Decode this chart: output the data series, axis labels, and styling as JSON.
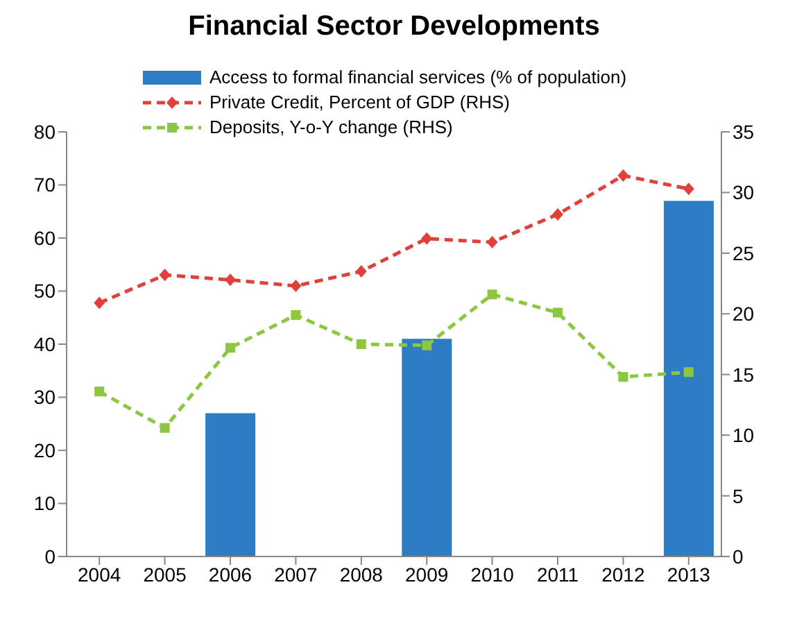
{
  "chart_data": {
    "type": "bar",
    "title": "Financial Sector Developments",
    "categories": [
      "2004",
      "2005",
      "2006",
      "2007",
      "2008",
      "2009",
      "2010",
      "2011",
      "2012",
      "2013"
    ],
    "series": [
      {
        "name": "Access to formal financial services (% of population)",
        "color": "#2e7dc4",
        "values": [
          null,
          null,
          27,
          null,
          null,
          41,
          null,
          null,
          null,
          67
        ]
      },
      {
        "name": "Private Credit, Percent of GDP (RHS)",
        "type": "line",
        "axis": "y2",
        "color": "#e0403a",
        "marker": "diamond",
        "line_style": "dashed",
        "values": [
          20.9,
          23.2,
          22.8,
          22.3,
          23.5,
          26.2,
          25.9,
          28.2,
          31.4,
          30.3
        ]
      },
      {
        "name": "Deposits, Y-o-Y change (RHS)",
        "type": "line",
        "axis": "y2",
        "color": "#8dc63f",
        "marker": "square",
        "line_style": "dashed",
        "values": [
          13.6,
          10.6,
          17.2,
          19.9,
          17.5,
          17.4,
          21.6,
          20.1,
          14.8,
          15.2
        ]
      }
    ],
    "ylim": [
      0,
      80
    ],
    "yticks": [
      0,
      10,
      20,
      30,
      40,
      50,
      60,
      70,
      80
    ],
    "y2lim": [
      0,
      35
    ],
    "y2ticks": [
      0,
      5,
      10,
      15,
      20,
      25,
      30,
      35
    ],
    "grid": false,
    "legend": "top"
  }
}
